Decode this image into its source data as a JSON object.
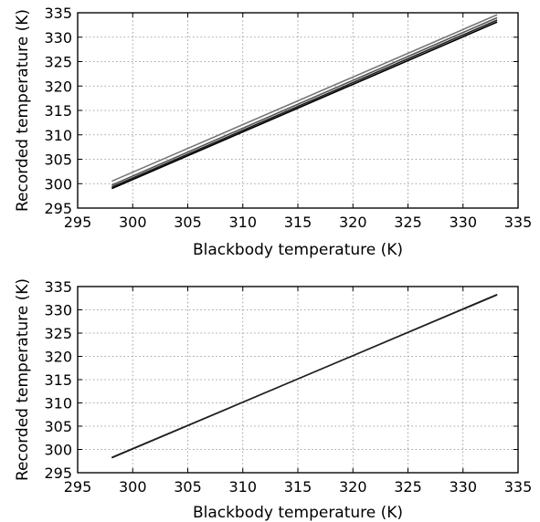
{
  "chart_data": [
    {
      "type": "line",
      "xlabel": "Blackbody temperature (K)",
      "ylabel": "Recorded temperature (K)",
      "xlim": [
        295,
        335
      ],
      "ylim": [
        295,
        335
      ],
      "xticks": [
        295,
        300,
        305,
        310,
        315,
        320,
        325,
        330,
        335
      ],
      "yticks": [
        295,
        300,
        305,
        310,
        315,
        320,
        325,
        330,
        335
      ],
      "grid": true,
      "series": [
        {
          "x": [
            298.1,
            333.1
          ],
          "y": [
            300.5,
            334.6
          ],
          "color": "#777777"
        },
        {
          "x": [
            298.1,
            333.1
          ],
          "y": [
            299.7,
            334.0
          ],
          "color": "#555555"
        },
        {
          "x": [
            298.1,
            333.1
          ],
          "y": [
            299.3,
            333.5
          ],
          "color": "#222222"
        },
        {
          "x": [
            298.1,
            333.1
          ],
          "y": [
            299.0,
            333.1
          ],
          "color": "#000000"
        }
      ]
    },
    {
      "type": "line",
      "xlabel": "Blackbody temperature (K)",
      "ylabel": "Recorded temperature (K)",
      "xlim": [
        295,
        335
      ],
      "ylim": [
        295,
        335
      ],
      "xticks": [
        295,
        300,
        305,
        310,
        315,
        320,
        325,
        330,
        335
      ],
      "yticks": [
        295,
        300,
        305,
        310,
        315,
        320,
        325,
        330,
        335
      ],
      "grid": true,
      "series": [
        {
          "x": [
            298.1,
            333.1
          ],
          "y": [
            298.2,
            333.3
          ],
          "color": "#000000"
        },
        {
          "x": [
            298.1,
            333.1
          ],
          "y": [
            298.3,
            333.2
          ],
          "color": "#222222"
        }
      ]
    }
  ]
}
